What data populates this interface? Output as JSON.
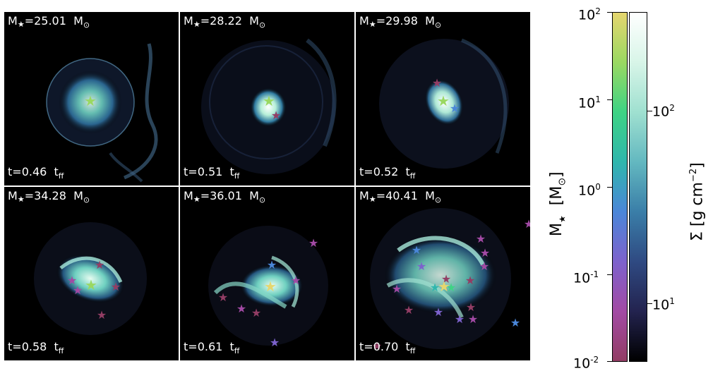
{
  "panels": [
    {
      "mass_value": "25.01",
      "time_value": "0.46"
    },
    {
      "mass_value": "28.22",
      "time_value": "0.51"
    },
    {
      "mass_value": "29.98",
      "time_value": "0.52"
    },
    {
      "mass_value": "34.28",
      "time_value": "0.58"
    },
    {
      "mass_value": "36.01",
      "time_value": "0.61"
    },
    {
      "mass_value": "40.41",
      "time_value": "0.70"
    }
  ],
  "labels": {
    "mass_symbol": "M",
    "mass_unit": "M",
    "time_symbol": "t",
    "time_unit": "t",
    "time_unit_sub": "ff"
  },
  "colorbar_star": {
    "label": "M",
    "label_unit": "[M",
    "ticks": [
      {
        "base": "10",
        "exp": "2"
      },
      {
        "base": "10",
        "exp": "1"
      },
      {
        "base": "10",
        "exp": "0"
      },
      {
        "base": "10",
        "exp": "-1"
      },
      {
        "base": "10",
        "exp": "-2"
      }
    ],
    "colors": [
      "#e5d66f",
      "#9ad862",
      "#3ed384",
      "#2fb6ad",
      "#4a86d8",
      "#7d62cc",
      "#a24aa4",
      "#923d64"
    ]
  },
  "colorbar_sigma": {
    "label": "Σ  [g cm",
    "label_exp": "−2",
    "ticks": [
      {
        "base": "10",
        "exp": "2"
      },
      {
        "base": "10",
        "exp": "1"
      }
    ],
    "colors": [
      "#ffffff",
      "#d8f5e8",
      "#9fe0d0",
      "#63b8c0",
      "#3a7ea8",
      "#2f4a82",
      "#23234f",
      "#000000"
    ]
  }
}
